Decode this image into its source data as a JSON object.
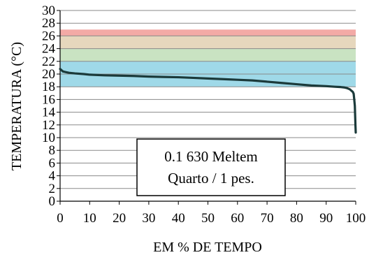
{
  "chart_data": {
    "type": "line",
    "xlabel": "EM % DE TEMPO",
    "ylabel": "TEMPERATURA (°C)",
    "xlim": [
      0,
      100
    ],
    "ylim": [
      0,
      30
    ],
    "xticks": [
      0,
      10,
      20,
      30,
      40,
      50,
      60,
      70,
      80,
      90,
      100
    ],
    "yticks": [
      0,
      2,
      4,
      6,
      8,
      10,
      12,
      14,
      16,
      18,
      20,
      22,
      24,
      26,
      28,
      30
    ],
    "grid": true,
    "bands": [
      {
        "from": 18,
        "to": 22,
        "color": "#9fd9e8"
      },
      {
        "from": 22,
        "to": 24,
        "color": "#c9e3c2"
      },
      {
        "from": 24,
        "to": 26,
        "color": "#e6d7bd"
      },
      {
        "from": 26,
        "to": 27,
        "color": "#f3aaa6"
      }
    ],
    "series": [
      {
        "color": "#1b3a3a",
        "x": [
          0,
          0.5,
          1,
          2,
          3,
          5,
          8,
          10,
          15,
          20,
          25,
          30,
          35,
          40,
          45,
          50,
          55,
          60,
          65,
          70,
          75,
          80,
          85,
          90,
          93,
          95,
          96,
          97,
          97.5,
          98,
          98.5,
          99,
          99.3,
          99.5,
          99.7,
          99.8,
          99.9,
          100
        ],
        "y": [
          20.8,
          20.6,
          20.4,
          20.3,
          20.2,
          20.1,
          20.0,
          19.9,
          19.8,
          19.75,
          19.7,
          19.6,
          19.55,
          19.5,
          19.4,
          19.3,
          19.2,
          19.1,
          19.0,
          18.8,
          18.6,
          18.4,
          18.2,
          18.1,
          18.0,
          17.95,
          17.9,
          17.8,
          17.7,
          17.6,
          17.4,
          17.2,
          16.9,
          16.0,
          15.0,
          13.5,
          12.0,
          10.8
        ]
      }
    ],
    "annotation": {
      "line1": "0.1 630 Meltem",
      "line2": "Quarto / 1 pes."
    }
  }
}
